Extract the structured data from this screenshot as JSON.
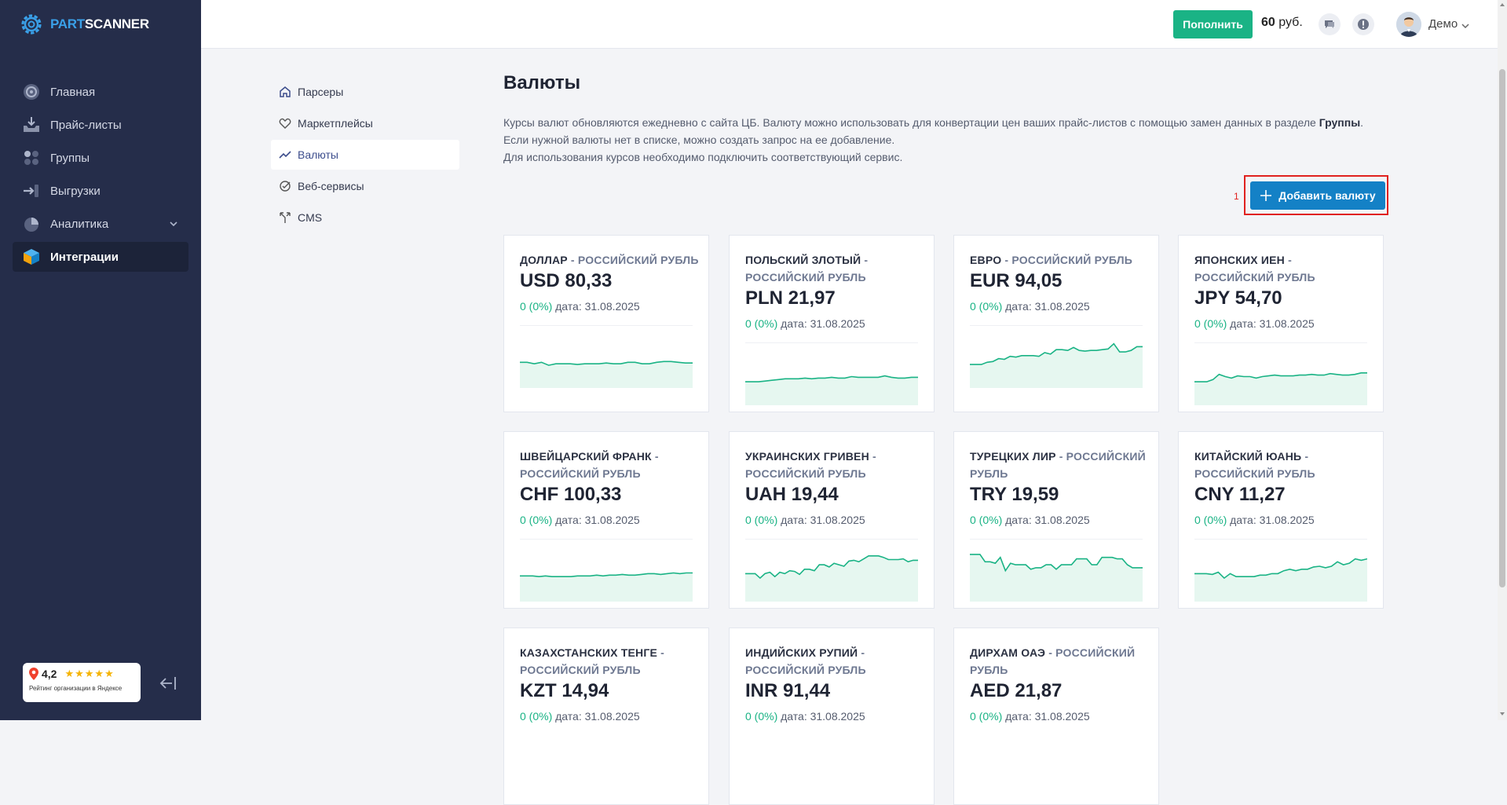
{
  "brand": {
    "part": "PART",
    "scanner": "SCANNER",
    "color_part": "#3aa0e8"
  },
  "sidebar": {
    "items": [
      {
        "label": "Главная",
        "icon": "dashboard-icon"
      },
      {
        "label": "Прайс-листы",
        "icon": "inbox-download-icon"
      },
      {
        "label": "Группы",
        "icon": "groups-dots-icon"
      },
      {
        "label": "Выгрузки",
        "icon": "export-icon"
      },
      {
        "label": "Аналитика",
        "icon": "pie-chart-icon"
      },
      {
        "label": "Интеграции",
        "icon": "cube-icon"
      }
    ],
    "rating": {
      "value": "4,2",
      "stars": "★★★★★",
      "caption": "Рейтинг организации в Яндексе"
    }
  },
  "header": {
    "topup_label": "Пополнить",
    "balance_amount": "60",
    "balance_currency": "руб.",
    "user_name": "Демо"
  },
  "subnav": {
    "items": [
      {
        "label": "Парсеры",
        "icon": "home-icon"
      },
      {
        "label": "Маркетплейсы",
        "icon": "heart-icon"
      },
      {
        "label": "Валюты",
        "icon": "trend-line-icon"
      },
      {
        "label": "Веб-сервисы",
        "icon": "check-circle-icon"
      },
      {
        "label": "CMS",
        "icon": "fork-icon"
      }
    ]
  },
  "page": {
    "title": "Валюты",
    "desc_line1": "Курсы валют обновляются ежедневно с сайта ЦБ. Валюту можно использовать для конвертации цен ваших прайс-листов с помощью замен данных в разделе",
    "desc_bold": "Группы",
    "desc_line2": ". Если нужной валюты нет в списке, можно создать запрос на ее добавление.",
    "desc_line3": "Для использования курсов необходимо подключить соответствующий сервис.",
    "annotation": "1",
    "add_button": "Добавить валюту",
    "accent": "#1481c6",
    "positive": "#1ab385"
  },
  "cards": [
    {
      "name": "ДОЛЛАР",
      "base": "- РОССИЙСКИЙ РУБЛЬ",
      "value": "USD 80,33",
      "change": "0 (0%)",
      "date": "дата: 31.08.2025",
      "trend": [
        5,
        5,
        3,
        5,
        1,
        3,
        3,
        3,
        2,
        3,
        3,
        3,
        4,
        3,
        3,
        5,
        5,
        3,
        3,
        5,
        6,
        6,
        5,
        4,
        4
      ]
    },
    {
      "name": "ПОЛЬСКИЙ ЗЛОТЫЙ",
      "base": "- РОССИЙСКИЙ РУБЛЬ",
      "value": "PLN 21,97",
      "change": "0 (0%)",
      "date": "дата: 31.08.2025",
      "trend": [
        2,
        2,
        2,
        3,
        4,
        5,
        6,
        6,
        6,
        7,
        6,
        7,
        7,
        8,
        7,
        7,
        9,
        8,
        8,
        8,
        8,
        10,
        8,
        7,
        7,
        8,
        8
      ]
    },
    {
      "name": "ЕВРО",
      "base": "- РОССИЙСКИЙ РУБЛЬ",
      "value": "EUR 94,05",
      "change": "0 (0%)",
      "date": "дата: 31.08.2025",
      "trend": [
        2,
        2,
        2,
        5,
        6,
        10,
        9,
        13,
        12,
        14,
        14,
        14,
        13,
        18,
        16,
        22,
        22,
        21,
        25,
        21,
        20,
        21,
        21,
        22,
        23,
        30,
        19,
        19,
        21,
        26,
        26
      ]
    },
    {
      "name": "ЯПОНСКИХ ИЕН",
      "base": "- РОССИЙСКИЙ РУБЛЬ",
      "value": "JPY 54,70",
      "change": "0 (0%)",
      "date": "дата: 31.08.2025",
      "trend": [
        2,
        2,
        2,
        5,
        12,
        9,
        7,
        10,
        9,
        9,
        7,
        9,
        10,
        11,
        10,
        10,
        10,
        11,
        11,
        12,
        11,
        11,
        13,
        12,
        11,
        11,
        12,
        14,
        14
      ]
    },
    {
      "name": "ШВЕЙЦАРСКИЙ ФРАНК",
      "base": "- РОССИЙСКИЙ РУБЛЬ",
      "value": "CHF 100,33",
      "change": "0 (0%)",
      "date": "дата: 31.08.2025",
      "trend": [
        5,
        5,
        5,
        4,
        5,
        4,
        4,
        4,
        4,
        5,
        5,
        5,
        6,
        5,
        6,
        6,
        7,
        6,
        6,
        7,
        8,
        8,
        7,
        8,
        9,
        8,
        9,
        9
      ]
    },
    {
      "name": "УКРАИНСКИХ ГРИВЕН",
      "base": "- РОССИЙСКИЙ РУБЛЬ",
      "value": "UAH 19,44",
      "change": "0 (0%)",
      "date": "дата: 31.08.2025",
      "trend": [
        8,
        8,
        8,
        2,
        8,
        10,
        4,
        10,
        8,
        12,
        11,
        7,
        14,
        14,
        12,
        20,
        20,
        17,
        22,
        20,
        18,
        25,
        26,
        24,
        28,
        32,
        32,
        32,
        30,
        27,
        27,
        27,
        28,
        24,
        26,
        26
      ]
    },
    {
      "name": "ТУРЕЦКИХ ЛИР",
      "base": "- РОССИЙСКИЙ РУБЛЬ",
      "value": "TRY 19,59",
      "change": "0 (0%)",
      "date": "дата: 31.08.2025",
      "trend": [
        34,
        34,
        34,
        24,
        24,
        22,
        30,
        12,
        22,
        20,
        20,
        20,
        14,
        16,
        16,
        20,
        20,
        14,
        20,
        20,
        20,
        28,
        28,
        28,
        20,
        20,
        30,
        30,
        30,
        28,
        28,
        20,
        16,
        16,
        16
      ]
    },
    {
      "name": "КИТАЙСКИЙ ЮАНЬ",
      "base": "- РОССИЙСКИЙ РУБЛЬ",
      "value": "CNY 11,27",
      "change": "0 (0%)",
      "date": "дата: 31.08.2025",
      "trend": [
        8,
        8,
        8,
        7,
        10,
        2,
        8,
        4,
        4,
        4,
        4,
        6,
        6,
        8,
        8,
        12,
        14,
        12,
        14,
        14,
        17,
        18,
        16,
        18,
        24,
        20,
        22,
        28,
        26,
        28
      ]
    },
    {
      "name": "КАЗАХСТАНСКИХ ТЕНГЕ",
      "base": "- РОССИЙСКИЙ РУБЛЬ",
      "value": "KZT 14,94",
      "change": "0 (0%)",
      "date": "дата: 31.08.2025",
      "trend": []
    },
    {
      "name": "ИНДИЙСКИХ РУПИЙ",
      "base": "- РОССИЙСКИЙ РУБЛЬ",
      "value": "INR 91,44",
      "change": "0 (0%)",
      "date": "дата: 31.08.2025",
      "trend": []
    },
    {
      "name": "ДИРХАМ ОАЭ",
      "base": "- РОССИЙСКИЙ РУБЛЬ",
      "value": "AED 21,87",
      "change": "0 (0%)",
      "date": "дата: 31.08.2025",
      "trend": []
    }
  ]
}
